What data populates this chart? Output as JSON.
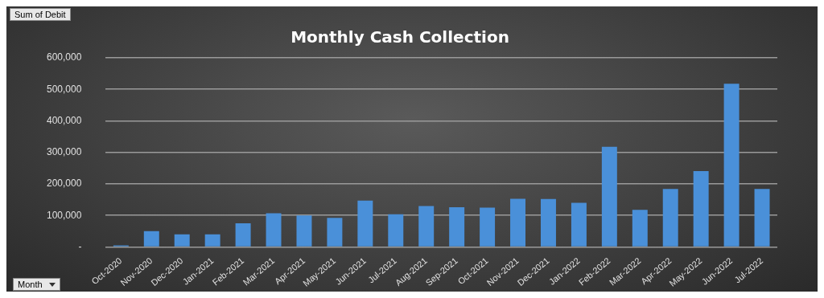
{
  "chart_data": {
    "type": "bar",
    "title": "Monthly Cash Collection",
    "categories": [
      "Oct-2020",
      "Nov-2020",
      "Dec-2020",
      "Jan-2021",
      "Feb-2021",
      "Mar-2021",
      "Apr-2021",
      "May-2021",
      "Jun-2021",
      "Jul-2021",
      "Aug-2021",
      "Sep-2021",
      "Oct-2021",
      "Nov-2021",
      "Dec-2021",
      "Jan-2022",
      "Feb-2022",
      "Mar-2022",
      "Apr-2022",
      "May-2022",
      "Jun-2022",
      "Jul-2022"
    ],
    "values": [
      5000,
      50000,
      40000,
      40000,
      75000,
      107000,
      100000,
      92000,
      147000,
      104000,
      130000,
      126000,
      125000,
      153000,
      152000,
      140000,
      318000,
      118000,
      184000,
      241000,
      518000,
      184000
    ],
    "color": "#4a90d9",
    "ylim": [
      0,
      600000
    ],
    "yticks": [
      {
        "value": 0,
        "label": "-"
      },
      {
        "value": 100000,
        "label": "100,000"
      },
      {
        "value": 200000,
        "label": "200,000"
      },
      {
        "value": 300000,
        "label": "300,000"
      },
      {
        "value": 400000,
        "label": "400,000"
      },
      {
        "value": 500000,
        "label": "500,000"
      },
      {
        "value": 600000,
        "label": "600,000"
      }
    ],
    "grid": "y",
    "legend": false,
    "annotations": [
      "Sum of Debit",
      "Month"
    ]
  }
}
